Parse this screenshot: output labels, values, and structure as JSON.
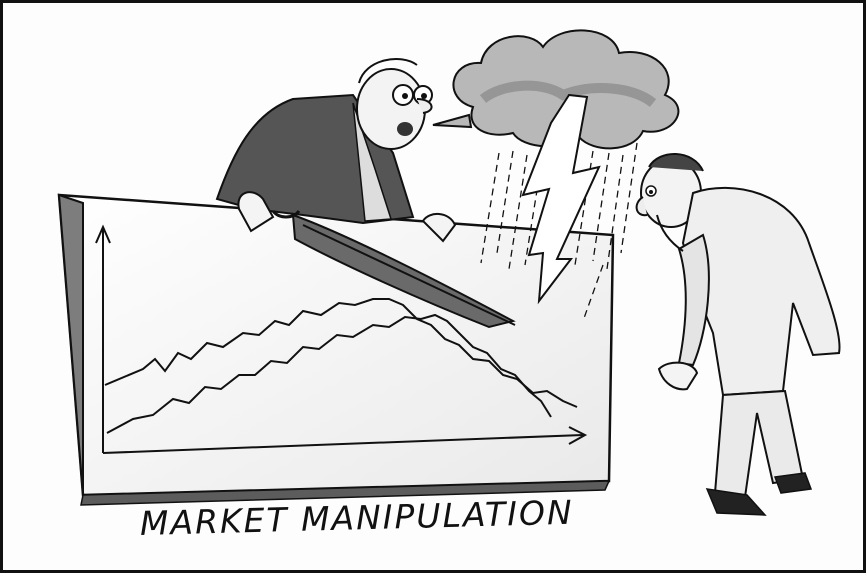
{
  "caption": "MARKET MANIPULATION",
  "colors": {
    "ink": "#111111",
    "paper": "#fdfdfd",
    "wash": "#8a8a8a"
  }
}
